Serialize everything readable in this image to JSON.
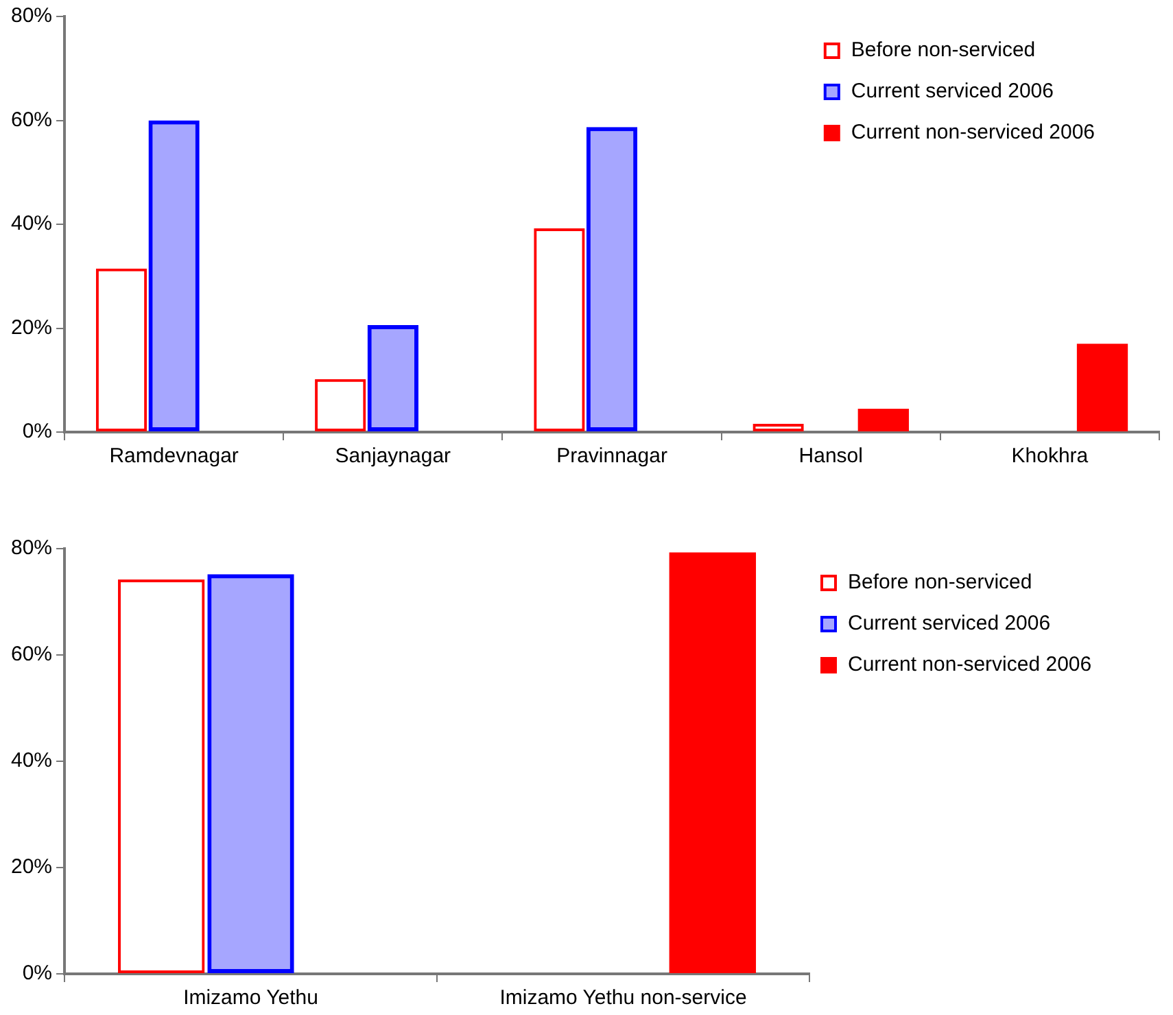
{
  "chart_data": [
    {
      "type": "bar",
      "categories": [
        "Ramdevnagar",
        "Sanjaynagar",
        "Pravinnagar",
        "Hansol",
        "Khokhra"
      ],
      "series": [
        {
          "name": "Before non-serviced",
          "color": "#ff0000",
          "values": [
            31.5,
            10.2,
            39.2,
            1.6,
            null
          ]
        },
        {
          "name": "Current serviced 2006",
          "color": "#0000ff",
          "values": [
            60,
            20.6,
            58.7,
            null,
            null
          ]
        },
        {
          "name": "Current non-serviced 2006",
          "color": "#ff0000",
          "values": [
            null,
            null,
            null,
            4.5,
            17
          ]
        }
      ],
      "ylim": [
        0,
        80
      ],
      "yticks": [
        {
          "value": 0,
          "label": "0%"
        },
        {
          "value": 20,
          "label": "20%"
        },
        {
          "value": 40,
          "label": "40%"
        },
        {
          "value": 60,
          "label": "60%"
        },
        {
          "value": 80,
          "label": "80%"
        }
      ],
      "grid": false,
      "legend": "top right"
    },
    {
      "type": "bar",
      "categories": [
        "Imizamo Yethu",
        "Imizamo Yethu non-service"
      ],
      "series": [
        {
          "name": "Before non-serviced",
          "color": "#ff0000",
          "values": [
            74.2,
            null
          ]
        },
        {
          "name": "Current serviced 2006",
          "color": "#0000ff",
          "values": [
            75.2,
            null
          ]
        },
        {
          "name": "Current non-serviced 2006",
          "color": "#ff0000",
          "values": [
            null,
            79.3
          ]
        }
      ],
      "ylim": [
        0,
        80
      ],
      "yticks": [
        {
          "value": 0,
          "label": "0%"
        },
        {
          "value": 20,
          "label": "20%"
        },
        {
          "value": 40,
          "label": "40%"
        },
        {
          "value": 60,
          "label": "60%"
        },
        {
          "value": 80,
          "label": "80%"
        }
      ],
      "grid": false,
      "legend": "right"
    }
  ]
}
